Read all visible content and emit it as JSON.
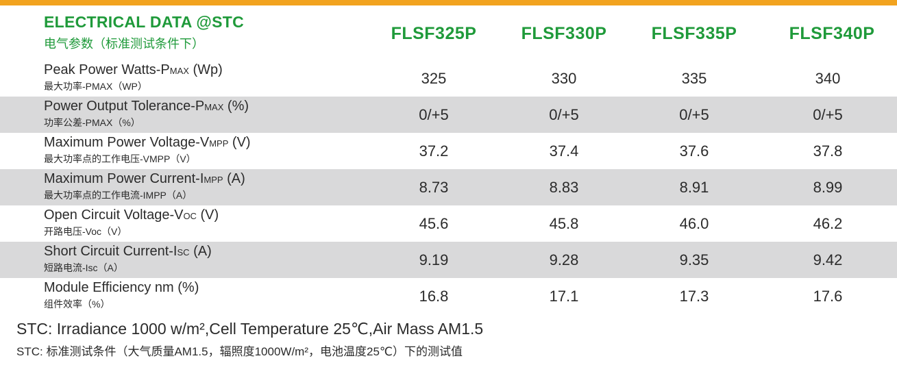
{
  "header": {
    "title_en": "ELECTRICAL DATA @STC",
    "title_cn": "电气参数（标准测试条件下）",
    "models": [
      "FLSF325P",
      "FLSF330P",
      "FLSF335P",
      "FLSF340P"
    ]
  },
  "rows": [
    {
      "label_main": "Peak Power Watts-P",
      "label_sub": "MAX",
      "label_unit": " (Wp)",
      "label_cn": "最大功率-PMAX（WP）",
      "values": [
        "325",
        "330",
        "335",
        "340"
      ]
    },
    {
      "label_main": "Power Output Tolerance-P",
      "label_sub": "MAX",
      "label_unit": " (%)",
      "label_cn": "功率公差-PMAX（%）",
      "values": [
        "0/+5",
        "0/+5",
        "0/+5",
        "0/+5"
      ]
    },
    {
      "label_main": "Maximum Power Voltage-V",
      "label_sub": "MPP",
      "label_unit": " (V)",
      "label_cn": "最大功率点的工作电压-VMPP（V）",
      "values": [
        "37.2",
        "37.4",
        "37.6",
        "37.8"
      ]
    },
    {
      "label_main": "Maximum Power Current-I",
      "label_sub": "MPP",
      "label_unit": " (A)",
      "label_cn": "最大功率点的工作电流-IMPP（A）",
      "values": [
        "8.73",
        "8.83",
        "8.91",
        "8.99"
      ]
    },
    {
      "label_main": "Open Circuit Voltage-V",
      "label_sub": "OC",
      "label_unit": " (V)",
      "label_cn": "开路电压-Voc（V）",
      "values": [
        "45.6",
        "45.8",
        "46.0",
        "46.2"
      ]
    },
    {
      "label_main": "Short Circuit Current-I",
      "label_sub": "SC",
      "label_unit": " (A)",
      "label_cn": "短路电流-Isc（A）",
      "values": [
        "9.19",
        "9.28",
        "9.35",
        "9.42"
      ]
    },
    {
      "label_main": "Module Efficiency nm",
      "label_sub": "",
      "label_unit": " (%)",
      "label_cn": "组件效率（%）",
      "values": [
        "16.8",
        "17.1",
        "17.3",
        "17.6"
      ]
    }
  ],
  "footnote": {
    "en": "STC: Irradiance 1000 w/m²,Cell Temperature 25℃,Air Mass AM1.5",
    "cn": "STC: 标准测试条件（大气质量AM1.5，辐照度1000W/m²，电池温度25℃）下的测试值"
  },
  "colors": {
    "accent_bar": "#f2a31f",
    "title_green": "#1f9a3a",
    "row_shade": "#d9d9da"
  }
}
